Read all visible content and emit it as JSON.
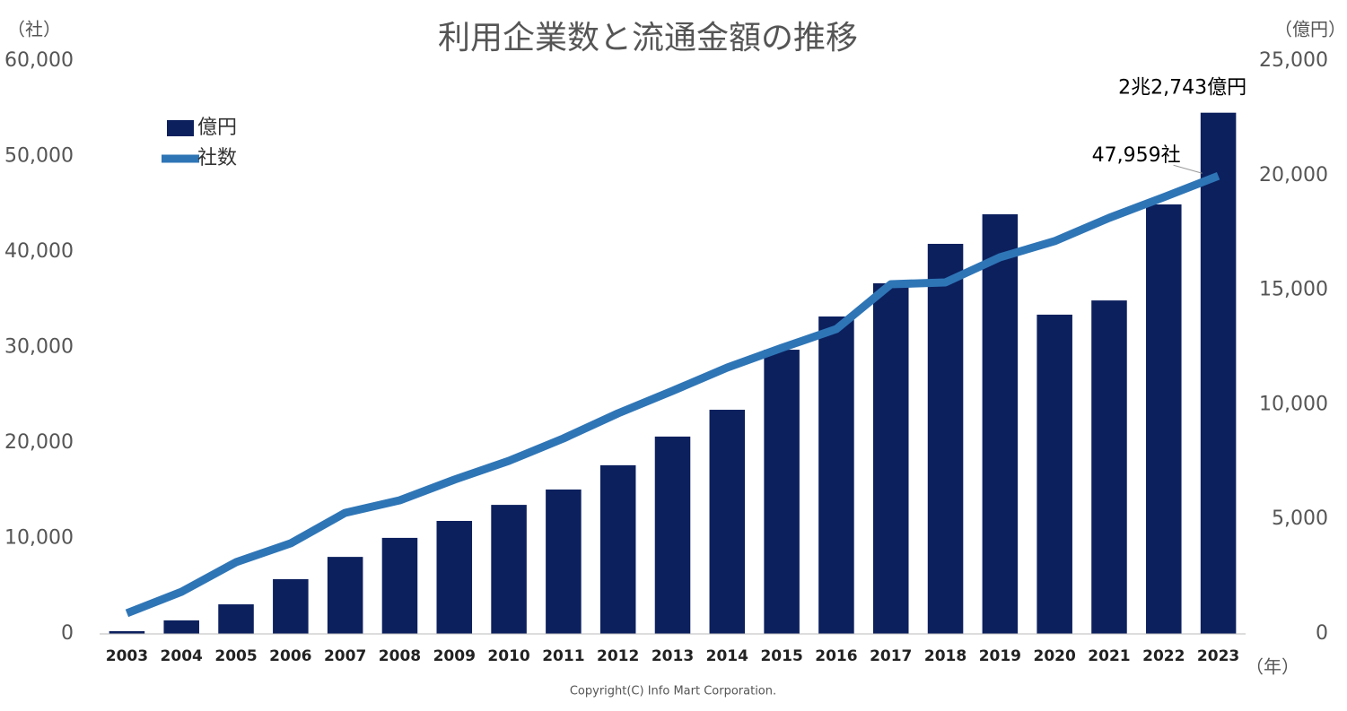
{
  "chart_data": {
    "type": "combo",
    "title": "利用企業数と流通金額の推移",
    "y_unit_label": "（社）",
    "y2_unit_label": "（億円）",
    "x_unit_label": "（年）",
    "footer": "Copyright(C) Info Mart Corporation.",
    "categories": [
      "2003",
      "2004",
      "2005",
      "2006",
      "2007",
      "2008",
      "2009",
      "2010",
      "2011",
      "2012",
      "2013",
      "2014",
      "2015",
      "2016",
      "2017",
      "2018",
      "2019",
      "2020",
      "2021",
      "2022",
      "2023"
    ],
    "series": [
      {
        "name": "億円",
        "type": "bar",
        "axis": "y2",
        "color": "#0c205e",
        "values": [
          120,
          590,
          1290,
          2390,
          3360,
          4190,
          4930,
          5630,
          6300,
          7360,
          8610,
          9780,
          12400,
          13850,
          15300,
          17020,
          18310,
          13930,
          14550,
          18740,
          22743
        ],
        "value_labels": [
          null,
          null,
          null,
          null,
          null,
          null,
          null,
          null,
          null,
          null,
          null,
          null,
          null,
          null,
          null,
          null,
          null,
          null,
          null,
          null,
          "2兆2,743億円"
        ]
      },
      {
        "name": "社数",
        "type": "line",
        "axis": "y",
        "color": "#2e75b6",
        "values": [
          2160,
          4410,
          7510,
          9480,
          12680,
          13990,
          16150,
          18120,
          20470,
          23100,
          25450,
          27890,
          29950,
          31920,
          36620,
          36810,
          39440,
          41130,
          43570,
          45730,
          47959
        ],
        "value_labels": [
          null,
          null,
          null,
          null,
          null,
          null,
          null,
          null,
          null,
          null,
          null,
          null,
          null,
          null,
          null,
          null,
          null,
          null,
          null,
          null,
          "47,959社"
        ]
      }
    ],
    "ylim": [
      0,
      60000
    ],
    "yticks": [
      0,
      {
        "value": 10000,
        "label": "10,000"
      },
      {
        "value": 20000,
        "label": "20,000"
      },
      {
        "value": 30000,
        "label": "30,000"
      },
      {
        "value": 40000,
        "label": "40,000"
      },
      {
        "value": 50000,
        "label": "50,000"
      },
      {
        "value": 60000,
        "label": "60,000"
      }
    ],
    "y2lim": [
      0,
      25000
    ],
    "y2ticks": [
      0,
      {
        "value": 5000,
        "label": "5,000"
      },
      {
        "value": 10000,
        "label": "10,000"
      },
      {
        "value": 15000,
        "label": "15,000"
      },
      {
        "value": 20000,
        "label": "20,000"
      },
      {
        "value": 25000,
        "label": "25,000"
      }
    ],
    "grid": false,
    "legend": "upper left"
  }
}
